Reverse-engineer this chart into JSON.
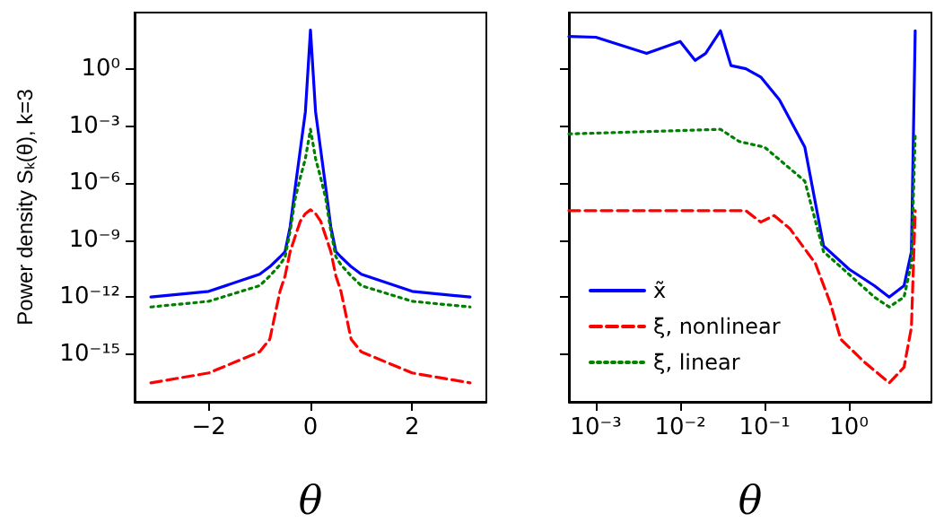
{
  "chart_data": [
    {
      "type": "line",
      "xlabel": "θ",
      "ylabel": "Power density Sₖ(θ), k=3",
      "log": "y",
      "marker": "none",
      "xlim": [
        -3.46,
        3.46
      ],
      "ylim": [
        3e-18,
        1000
      ],
      "xticks": [
        {
          "value": -2,
          "label": "−2"
        },
        0,
        2
      ],
      "yticks": [
        {
          "value": 1,
          "label": "10⁰"
        },
        {
          "value": 0.001,
          "label": "10⁻³"
        },
        {
          "value": 1e-06,
          "label": "10⁻⁶"
        },
        {
          "value": 1e-09,
          "label": "10⁻⁹"
        },
        {
          "value": 1e-12,
          "label": "10⁻¹²"
        },
        {
          "value": 1e-15,
          "label": "10⁻¹⁵"
        }
      ],
      "x": [
        -3.14,
        -2,
        -1,
        -0.8,
        -0.6,
        -0.5,
        -0.4,
        -0.3,
        -0.2,
        -0.1,
        0,
        0.1,
        0.2,
        0.3,
        0.4,
        0.5,
        0.6,
        0.8,
        1,
        2,
        3.14
      ],
      "series": [
        {
          "color": "#0000ff",
          "line_style": "solid",
          "values": [
            1e-12,
            2e-12,
            1.6e-11,
            4e-11,
            1.3e-10,
            2.5e-10,
            5e-09,
            6e-07,
            6e-05,
            0.006,
            120,
            0.006,
            6e-05,
            6e-07,
            5e-09,
            2.5e-10,
            1.3e-10,
            4e-11,
            1.6e-11,
            2e-12,
            1e-12
          ]
        },
        {
          "color": "#ff0000",
          "line_style": "dashed",
          "values": [
            3e-17,
            1e-16,
            1.3e-15,
            6e-15,
            2e-12,
            1.3e-11,
            2.5e-10,
            1.6e-09,
            1e-08,
            2.5e-08,
            4e-08,
            2.5e-08,
            1e-08,
            1.6e-09,
            2.5e-10,
            1.3e-11,
            2e-12,
            6e-15,
            1.3e-15,
            1e-16,
            3e-17
          ]
        },
        {
          "color": "#008000",
          "line_style": "dotted",
          "values": [
            3e-13,
            6e-13,
            4e-12,
            1.3e-11,
            5e-11,
            1.3e-10,
            3e-09,
            1.6e-07,
            2e-06,
            2e-05,
            0.0007,
            2e-05,
            2e-06,
            1.6e-07,
            3e-09,
            1.3e-10,
            5e-11,
            1.3e-11,
            4e-12,
            6e-13,
            3e-13
          ]
        }
      ]
    },
    {
      "type": "line",
      "xlabel": "θ",
      "log": "xy",
      "marker": "none",
      "legend": "bottom left",
      "tick_labels": "x",
      "xlim": [
        0.00048,
        9.5
      ],
      "ylim": [
        3e-18,
        1000
      ],
      "xticks": [
        {
          "value": 0.001,
          "label": "10⁻³"
        },
        {
          "value": 0.01,
          "label": "10⁻²"
        },
        {
          "value": 0.1,
          "label": "10⁻¹"
        },
        {
          "value": 1,
          "label": "10⁰"
        }
      ],
      "yticks": [
        1,
        0.001,
        1e-06,
        1e-09,
        1e-12,
        1e-15
      ],
      "series": [
        {
          "name": "x̃",
          "color": "#0000ff",
          "line_style": "solid",
          "x": [
            0.00048,
            0.001,
            0.004,
            0.01,
            0.015,
            0.02,
            0.03,
            0.04,
            0.06,
            0.09,
            0.15,
            0.3,
            0.5,
            1,
            2,
            3,
            4.5,
            5.5,
            6.1
          ],
          "values": [
            55,
            50,
            7,
            30,
            3,
            7,
            110,
            1.6,
            1.1,
            0.4,
            0.025,
            8e-05,
            5e-10,
            3e-11,
            4e-12,
            1e-12,
            4e-12,
            2.5e-10,
            110
          ]
        },
        {
          "name": "ξ, nonlinear",
          "color": "#ff0000",
          "line_style": "dashed",
          "x": [
            0.00048,
            0.06,
            0.09,
            0.13,
            0.2,
            0.4,
            0.6,
            0.8,
            1.5,
            3,
            4.5,
            5.5,
            6.1
          ],
          "values": [
            3.6e-08,
            3.6e-08,
            9e-09,
            2e-08,
            4e-09,
            6e-11,
            5e-13,
            6e-15,
            4e-16,
            3e-17,
            2e-16,
            2.5e-14,
            3.6e-08
          ]
        },
        {
          "name": "ξ, linear",
          "color": "#008000",
          "line_style": "dotted",
          "x": [
            0.00048,
            0.03,
            0.05,
            0.1,
            0.3,
            0.5,
            1,
            2,
            3,
            4.5,
            5.5,
            6.1
          ],
          "values": [
            0.0004,
            0.0007,
            0.00016,
            8e-05,
            1.3e-06,
            2.5e-10,
            1.6e-11,
            1e-12,
            3e-13,
            1e-12,
            6e-11,
            0.00035
          ]
        }
      ]
    }
  ]
}
